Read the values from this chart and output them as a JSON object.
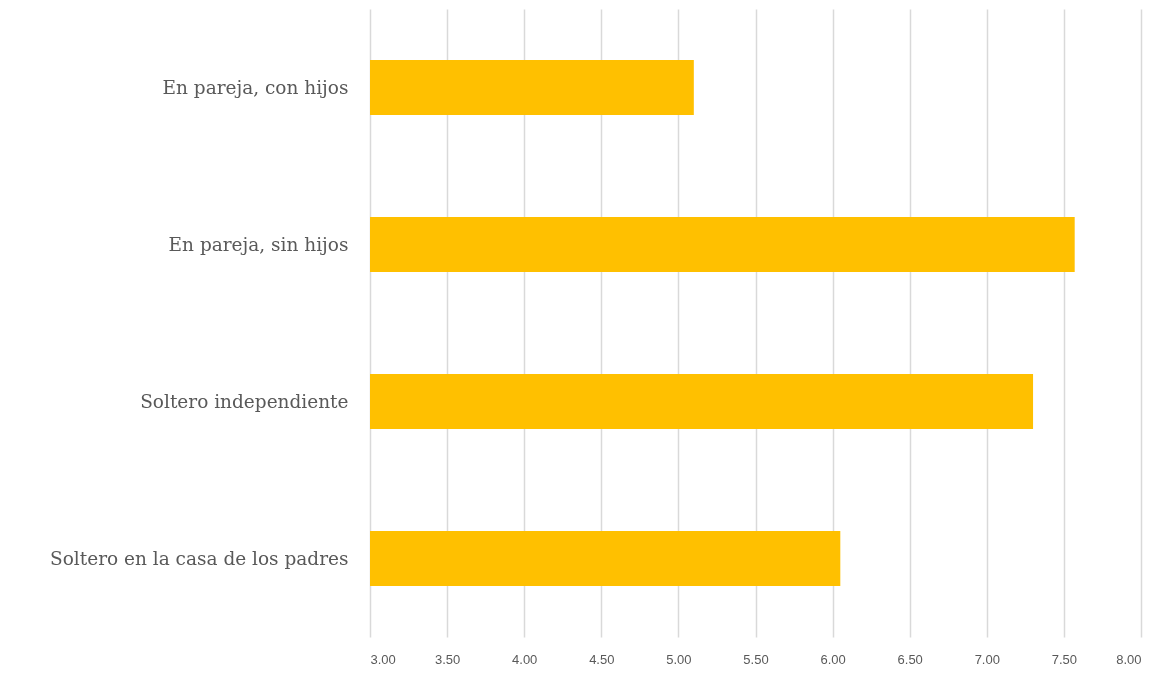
{
  "chart_data": {
    "type": "bar",
    "orientation": "horizontal",
    "categories": [
      "En pareja, con hijos",
      "En pareja, sin hijos",
      "Soltero independiente",
      "Soltero en la casa de los padres"
    ],
    "values": [
      5.1,
      7.57,
      7.3,
      6.05
    ],
    "color": "#ffc000",
    "xlim": [
      3,
      8
    ],
    "xticks": [
      {
        "value": 3,
        "label": "3.00"
      },
      {
        "value": 3.5,
        "label": "3.50"
      },
      {
        "value": 4,
        "label": "4.00"
      },
      {
        "value": 4.5,
        "label": "4.50"
      },
      {
        "value": 5,
        "label": "5.00"
      },
      {
        "value": 5.5,
        "label": "5.50"
      },
      {
        "value": 6,
        "label": "6.00"
      },
      {
        "value": 6.5,
        "label": "6.50"
      },
      {
        "value": 7,
        "label": "7.00"
      },
      {
        "value": 7.5,
        "label": "7.50"
      },
      {
        "value": 8,
        "label": "8.00"
      }
    ],
    "grid": "x"
  }
}
